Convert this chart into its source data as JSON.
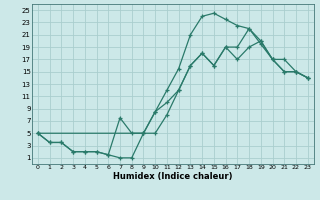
{
  "xlabel": "Humidex (Indice chaleur)",
  "background_color": "#cce8e8",
  "grid_color": "#aacece",
  "line_color": "#2a7a6a",
  "xlim": [
    -0.5,
    23.5
  ],
  "ylim": [
    0,
    26
  ],
  "xticks": [
    0,
    1,
    2,
    3,
    4,
    5,
    6,
    7,
    8,
    9,
    10,
    11,
    12,
    13,
    14,
    15,
    16,
    17,
    18,
    19,
    20,
    21,
    22,
    23
  ],
  "yticks": [
    1,
    3,
    5,
    7,
    9,
    11,
    13,
    15,
    17,
    19,
    21,
    23,
    25
  ],
  "curve1_x": [
    0,
    1,
    2,
    3,
    4,
    5,
    6,
    7,
    8,
    9,
    10,
    11,
    12,
    13,
    14,
    15,
    16,
    17,
    18,
    19,
    20,
    21,
    22,
    23
  ],
  "curve1_y": [
    5,
    3.5,
    3.5,
    2,
    2,
    2,
    1.5,
    1,
    1,
    5,
    5,
    8,
    12,
    16,
    18,
    16,
    19,
    19,
    22,
    20,
    17,
    15,
    15,
    14
  ],
  "curve2_x": [
    0,
    1,
    2,
    3,
    4,
    5,
    6,
    7,
    8,
    9,
    10,
    11,
    12,
    13,
    14,
    15,
    16,
    17,
    18,
    19,
    20,
    21,
    22,
    23
  ],
  "curve2_y": [
    5,
    3.5,
    3.5,
    2,
    2,
    2,
    1.5,
    7.5,
    5,
    5,
    8.5,
    12,
    15.5,
    21,
    24,
    24.5,
    23.5,
    22.5,
    22,
    19.5,
    17,
    17,
    15,
    14
  ],
  "curve3_x": [
    0,
    9,
    10,
    11,
    12,
    13,
    14,
    15,
    16,
    17,
    18,
    19,
    20,
    21,
    22,
    23
  ],
  "curve3_y": [
    5,
    5,
    8.5,
    10,
    12,
    16,
    18,
    16,
    19,
    17,
    19,
    20,
    17,
    15,
    15,
    14
  ]
}
